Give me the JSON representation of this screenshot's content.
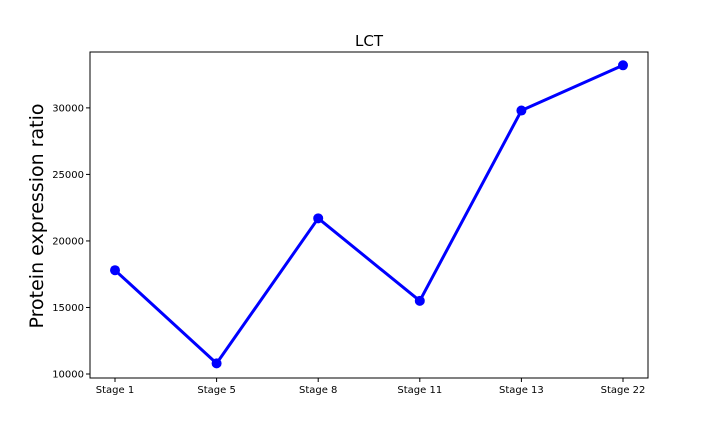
{
  "chart_data": {
    "type": "line",
    "title": "LCT",
    "xlabel": "",
    "ylabel": "Protein expression ratio",
    "categories": [
      "Stage 1",
      "Stage 5",
      "Stage 8",
      "Stage 11",
      "Stage 13",
      "Stage 22"
    ],
    "series": [
      {
        "values": [
          17800,
          10800,
          21700,
          15500,
          29800,
          33200
        ],
        "color": "#0000ff",
        "marker": "circle"
      }
    ],
    "yticks": [
      10000,
      15000,
      20000,
      25000,
      30000
    ],
    "ytick_labels": [
      "10000",
      "15000",
      "20000",
      "25000",
      "30000"
    ],
    "ylim": [
      9700,
      34200
    ],
    "grid": false,
    "legend": "none"
  }
}
